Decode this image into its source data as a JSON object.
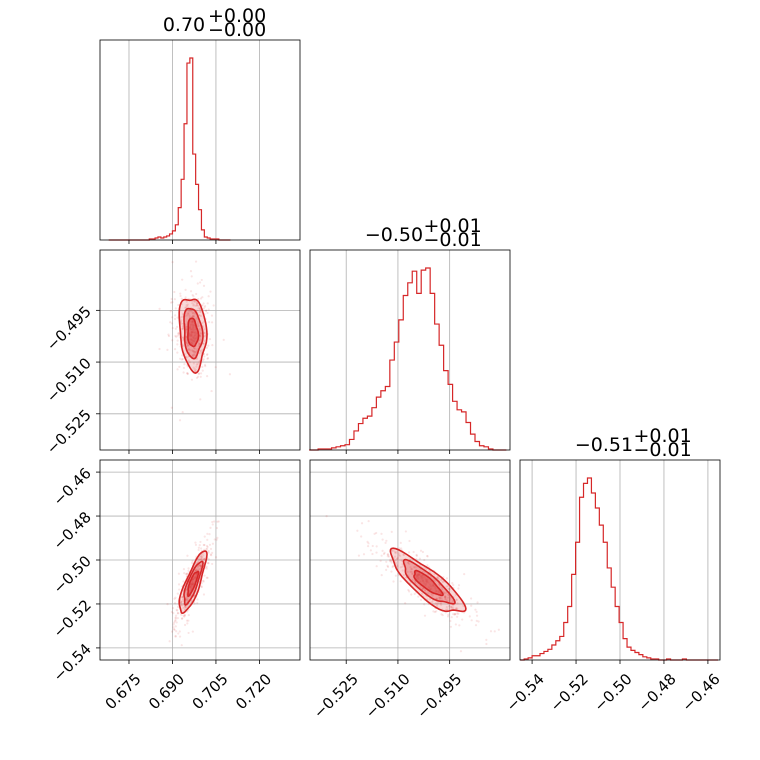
{
  "chart_data": {
    "type": "corner",
    "color": "#d62728",
    "grid": true,
    "parameters": [
      {
        "title": {
          "median": "0.70",
          "plus": "+0.00",
          "minus": "−0.00"
        },
        "range": [
          0.665,
          0.734
        ],
        "ticks": [
          0.675,
          0.69,
          0.705,
          0.72
        ],
        "tick_labels": [
          "0.675",
          "0.690",
          "0.705",
          "0.720"
        ],
        "center": 0.697,
        "sigma": 0.0021
      },
      {
        "title": {
          "median": "−0.50",
          "plus": "+0.01",
          "minus": "−0.01"
        },
        "range": [
          -0.5355,
          -0.4775
        ],
        "ticks": [
          -0.525,
          -0.51,
          -0.495
        ],
        "tick_labels": [
          "−0.525",
          "−0.510",
          "−0.495"
        ],
        "center": -0.5015,
        "sigma": 0.0048
      },
      {
        "title": {
          "median": "−0.51",
          "plus": "+0.01",
          "minus": "−0.01"
        },
        "range": [
          -0.5455,
          -0.4545
        ],
        "ticks": [
          -0.54,
          -0.52,
          -0.5,
          -0.48,
          -0.46
        ],
        "tick_labels": [
          "−0.54",
          "−0.52",
          "−0.50",
          "−0.48",
          "−0.46"
        ],
        "center": -0.5105,
        "sigma": 0.0064
      }
    ],
    "histograms": [
      {
        "parameter": 0,
        "bins": [
          0.6685,
          0.6695,
          0.6705,
          0.6715,
          0.6725,
          0.6735,
          0.6745,
          0.6755,
          0.6765,
          0.6775,
          0.6785,
          0.6795,
          0.6805,
          0.6815,
          0.6825,
          0.6835,
          0.6845,
          0.6855,
          0.6865,
          0.6875,
          0.6885,
          0.6895,
          0.6905,
          0.6915,
          0.6925,
          0.6935,
          0.6945,
          0.6955,
          0.6965,
          0.6975,
          0.6985,
          0.6995,
          0.7005,
          0.7015,
          0.7025,
          0.7035,
          0.7045,
          0.7055,
          0.7065,
          0.7075,
          0.7085,
          0.7095
        ],
        "counts": [
          0,
          0,
          0,
          0,
          0,
          0,
          0,
          0,
          0,
          0,
          0,
          0,
          0,
          0,
          1,
          1,
          2,
          3,
          2,
          3,
          4,
          6,
          9,
          15,
          32,
          60,
          115,
          175,
          180,
          85,
          55,
          30,
          10,
          3,
          2,
          1,
          1,
          1,
          0,
          0,
          0,
          0
        ]
      },
      {
        "parameter": 1,
        "bins": [
          -0.5351,
          -0.5338,
          -0.5325,
          -0.5312,
          -0.5299,
          -0.5286,
          -0.5273,
          -0.526,
          -0.5247,
          -0.5234,
          -0.5221,
          -0.5208,
          -0.5195,
          -0.5182,
          -0.5169,
          -0.5156,
          -0.5143,
          -0.513,
          -0.5117,
          -0.5104,
          -0.5091,
          -0.5078,
          -0.5065,
          -0.5052,
          -0.5039,
          -0.5026,
          -0.5013,
          -0.5,
          -0.4987,
          -0.4974,
          -0.4961,
          -0.4948,
          -0.4935,
          -0.4922,
          -0.4909,
          -0.4896,
          -0.4883,
          -0.487,
          -0.4857,
          -0.4844,
          -0.4831,
          -0.4818,
          -0.4805,
          -0.4792
        ],
        "counts": [
          0,
          0,
          1,
          1,
          1,
          2,
          3,
          4,
          5,
          10,
          18,
          25,
          30,
          32,
          40,
          50,
          56,
          60,
          85,
          102,
          123,
          146,
          158,
          169,
          148,
          170,
          172,
          148,
          119,
          99,
          75,
          62,
          46,
          38,
          36,
          26,
          15,
          8,
          4,
          3,
          1,
          0,
          0,
          0
        ]
      },
      {
        "parameter": 2,
        "bins": [
          -0.5445,
          -0.5427,
          -0.5409,
          -0.5391,
          -0.5373,
          -0.5355,
          -0.5337,
          -0.5319,
          -0.5301,
          -0.5283,
          -0.5265,
          -0.5247,
          -0.5229,
          -0.5211,
          -0.5193,
          -0.5175,
          -0.5157,
          -0.5139,
          -0.5121,
          -0.5103,
          -0.5085,
          -0.5067,
          -0.5049,
          -0.5031,
          -0.5013,
          -0.4995,
          -0.4977,
          -0.4959,
          -0.4941,
          -0.4923,
          -0.4905,
          -0.4887,
          -0.4869,
          -0.4851,
          -0.4833,
          -0.4815,
          -0.4797,
          -0.4779,
          -0.4761,
          -0.4743,
          -0.4725,
          -0.4707,
          -0.4689,
          -0.4671,
          -0.4653,
          -0.4635,
          -0.4617,
          -0.4599,
          -0.4581,
          -0.4563
        ],
        "counts": [
          0,
          1,
          2,
          4,
          4,
          6,
          8,
          10,
          14,
          18,
          22,
          35,
          50,
          80,
          110,
          152,
          165,
          170,
          156,
          142,
          126,
          110,
          86,
          68,
          50,
          35,
          20,
          12,
          9,
          7,
          5,
          3,
          2,
          1,
          1,
          0,
          0,
          1,
          0,
          0,
          0,
          1,
          0,
          0,
          0,
          0,
          0,
          0,
          0,
          0
        ]
      }
    ],
    "pairs": [
      {
        "x": 0,
        "y": 1,
        "correlation": -0.15
      },
      {
        "x": 0,
        "y": 2,
        "correlation": 0.82
      },
      {
        "x": 1,
        "y": 2,
        "correlation": -0.84
      }
    ]
  }
}
